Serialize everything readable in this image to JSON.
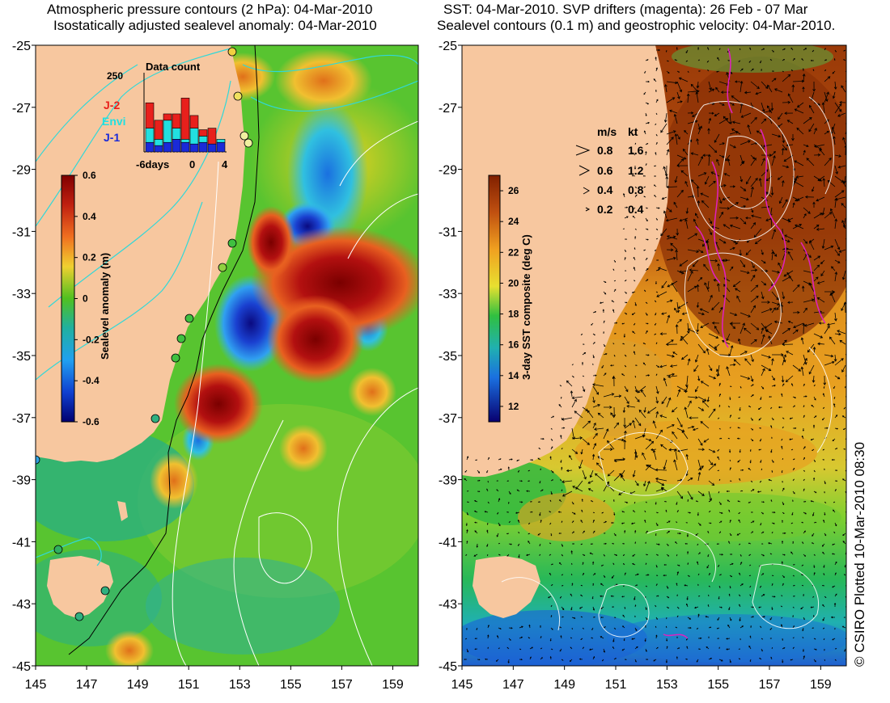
{
  "left_panel": {
    "title_line1": "Atmospheric pressure contours (2 hPa): 04-Mar-2010",
    "title_line2": "Isostatically adjusted sealevel anomaly: 04-Mar-2010",
    "colorbar": {
      "label": "Sealevel anomaly (m)",
      "ticks": [
        "0.6",
        "0.4",
        "0.2",
        "0",
        "-0.2",
        "-0.4",
        "-0.6"
      ],
      "range": [
        -0.6,
        0.6
      ]
    },
    "data_count": {
      "title": "Data count",
      "ymax_label": "250",
      "x_ticks": [
        "-6days",
        "0",
        "4"
      ],
      "legend": [
        {
          "label": "J-2",
          "color": "#e8201c"
        },
        {
          "label": "Envi",
          "color": "#22e0e0"
        },
        {
          "label": "J-1",
          "color": "#1a2ad8"
        }
      ],
      "bars": [
        {
          "j1": 30,
          "envi": 45,
          "j2": 80
        },
        {
          "j1": 20,
          "envi": 20,
          "j2": 60
        },
        {
          "j1": 30,
          "envi": 70,
          "j2": 20
        },
        {
          "j1": 40,
          "envi": 35,
          "j2": 45
        },
        {
          "j1": 30,
          "envi": 10,
          "j2": 130
        },
        {
          "j1": 25,
          "envi": 50,
          "j2": 40
        },
        {
          "j1": 30,
          "envi": 20,
          "j2": 20
        },
        {
          "j1": 25,
          "envi": 0,
          "j2": 50
        },
        {
          "j1": 30,
          "envi": 10,
          "j2": 0
        }
      ]
    }
  },
  "right_panel": {
    "title_line1": "SST: 04-Mar-2010. SVP drifters (magenta): 26 Feb - 07 Mar",
    "title_line2": "Sealevel contours (0.1 m) and geostrophic velocity: 04-Mar-2010.",
    "colorbar": {
      "label": "3-day SST composite (deg C)",
      "ticks": [
        "26",
        "24",
        "22",
        "20",
        "18",
        "16",
        "14",
        "12"
      ],
      "range": [
        11,
        27
      ]
    },
    "velocity_legend": {
      "header_ms": "m/s",
      "header_kt": "kt",
      "rows": [
        {
          "ms": "0.8",
          "kt": "1.6"
        },
        {
          "ms": "0.6",
          "kt": "1.2"
        },
        {
          "ms": "0.4",
          "kt": "0.8"
        },
        {
          "ms": "0.2",
          "kt": "0.4"
        }
      ]
    }
  },
  "axes": {
    "x_labels": [
      "145",
      "147",
      "149",
      "151",
      "153",
      "155",
      "157",
      "159"
    ],
    "y_labels": [
      "-25",
      "-27",
      "-29",
      "-31",
      "-33",
      "-35",
      "-37",
      "-39",
      "-41",
      "-43",
      "-45"
    ],
    "lon_range": [
      145,
      160
    ],
    "lat_range": [
      -45,
      -25
    ]
  },
  "credit": "© CSIRO Plotted 10-Mar-2010 08:30",
  "colors": {
    "land": "#f7c79f",
    "drifter": "#e020c0",
    "contour": "#ffffff"
  }
}
